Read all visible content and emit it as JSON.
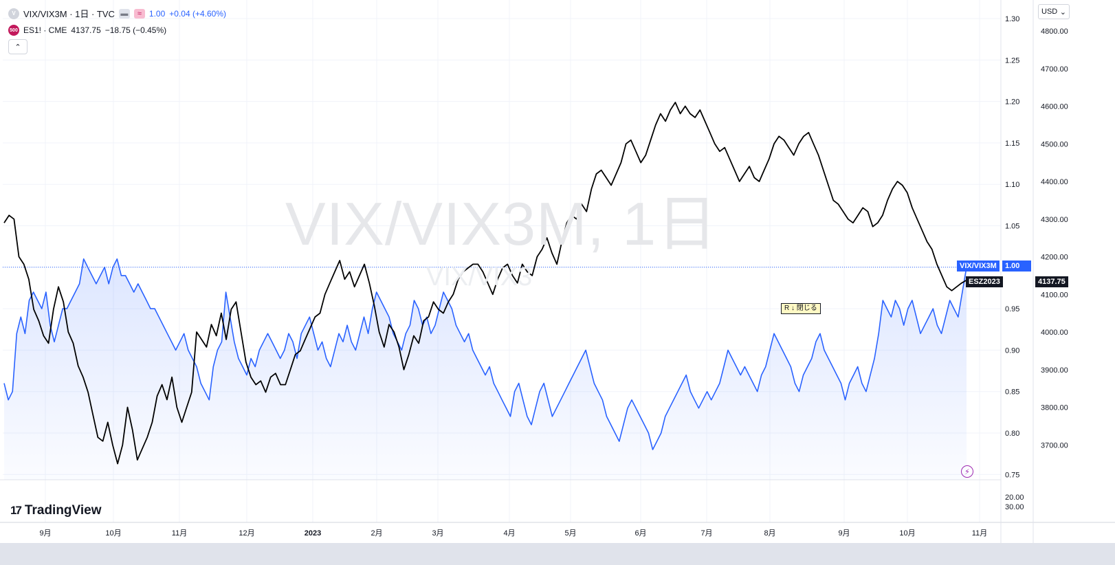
{
  "legend": {
    "main": {
      "badge": "V",
      "title": "VIX/VIX3M · 1日 · TVC",
      "value": "1.00",
      "change": "+0.04 (+4.60%)"
    },
    "compare": {
      "badge": "500",
      "title": "ES1! · CME",
      "value": "4137.75",
      "change": "−18.75 (−0.45%)"
    }
  },
  "watermark": {
    "large": "VIX/VIX3M, 1日",
    "small": "VIX/VIX3"
  },
  "currency": "USD",
  "brand": "TradingView",
  "close_tag": "R ↓ 閉じる",
  "labels": {
    "vix_name": "VIX/VIX3M",
    "vix_value": "1.00",
    "es_name": "ESZ2023",
    "es_value": "4137.75"
  },
  "colors": {
    "vix": "#2962ff",
    "es": "#000000",
    "label_blue": "#2962ff",
    "label_dark": "#131722"
  },
  "chart_data": {
    "type": "line",
    "x_ticks": [
      "9月",
      "10月",
      "11月",
      "12月",
      "2023",
      "2月",
      "3月",
      "4月",
      "5月",
      "6月",
      "7月",
      "8月",
      "9月",
      "10月",
      "11月"
    ],
    "y_left_ticks": [
      "1.30",
      "1.25",
      "1.20",
      "1.15",
      "1.10",
      "1.05",
      "1.00",
      "0.95",
      "0.90",
      "0.85",
      "0.80",
      "0.75"
    ],
    "y_right_ticks": [
      "4800.00",
      "4700.00",
      "4600.00",
      "4500.00",
      "4400.00",
      "4300.00",
      "4200.00",
      "4100.00",
      "4000.00",
      "3900.00",
      "3800.00",
      "3700.00"
    ],
    "lower_pane_ticks": [
      "20.00",
      "30.00"
    ],
    "series": [
      {
        "name": "VIX/VIX3M",
        "axis": "left",
        "area": true,
        "values": [
          0.86,
          0.84,
          0.85,
          0.92,
          0.94,
          0.92,
          0.96,
          0.97,
          0.96,
          0.95,
          0.97,
          0.93,
          0.91,
          0.93,
          0.95,
          0.95,
          0.96,
          0.97,
          0.98,
          1.01,
          1.0,
          0.99,
          0.98,
          0.99,
          1.0,
          0.98,
          1.0,
          1.01,
          0.99,
          0.99,
          0.98,
          0.97,
          0.98,
          0.97,
          0.96,
          0.95,
          0.95,
          0.94,
          0.93,
          0.92,
          0.91,
          0.9,
          0.91,
          0.92,
          0.9,
          0.89,
          0.88,
          0.86,
          0.85,
          0.84,
          0.88,
          0.9,
          0.91,
          0.97,
          0.94,
          0.91,
          0.89,
          0.88,
          0.87,
          0.89,
          0.88,
          0.9,
          0.91,
          0.92,
          0.91,
          0.9,
          0.89,
          0.9,
          0.92,
          0.91,
          0.89,
          0.92,
          0.93,
          0.94,
          0.92,
          0.9,
          0.91,
          0.89,
          0.88,
          0.9,
          0.92,
          0.91,
          0.93,
          0.91,
          0.9,
          0.92,
          0.94,
          0.92,
          0.95,
          0.97,
          0.96,
          0.95,
          0.94,
          0.92,
          0.91,
          0.9,
          0.92,
          0.93,
          0.96,
          0.95,
          0.93,
          0.94,
          0.92,
          0.93,
          0.95,
          0.97,
          0.96,
          0.95,
          0.93,
          0.92,
          0.91,
          0.92,
          0.9,
          0.89,
          0.88,
          0.87,
          0.88,
          0.86,
          0.85,
          0.84,
          0.83,
          0.82,
          0.85,
          0.86,
          0.84,
          0.82,
          0.81,
          0.83,
          0.85,
          0.86,
          0.84,
          0.82,
          0.83,
          0.84,
          0.85,
          0.86,
          0.87,
          0.88,
          0.89,
          0.9,
          0.88,
          0.86,
          0.85,
          0.84,
          0.82,
          0.81,
          0.8,
          0.79,
          0.81,
          0.83,
          0.84,
          0.83,
          0.82,
          0.81,
          0.8,
          0.78,
          0.79,
          0.8,
          0.82,
          0.83,
          0.84,
          0.85,
          0.86,
          0.87,
          0.85,
          0.84,
          0.83,
          0.84,
          0.85,
          0.84,
          0.85,
          0.86,
          0.88,
          0.9,
          0.89,
          0.88,
          0.87,
          0.88,
          0.87,
          0.86,
          0.85,
          0.87,
          0.88,
          0.9,
          0.92,
          0.91,
          0.9,
          0.89,
          0.88,
          0.86,
          0.85,
          0.87,
          0.88,
          0.89,
          0.91,
          0.92,
          0.9,
          0.89,
          0.88,
          0.87,
          0.86,
          0.84,
          0.86,
          0.87,
          0.88,
          0.86,
          0.85,
          0.87,
          0.89,
          0.92,
          0.96,
          0.95,
          0.94,
          0.96,
          0.95,
          0.93,
          0.95,
          0.96,
          0.94,
          0.92,
          0.93,
          0.94,
          0.95,
          0.93,
          0.92,
          0.94,
          0.96,
          0.95,
          0.94,
          0.97,
          1.0
        ]
      },
      {
        "name": "ESZ2023",
        "axis": "right",
        "area": false,
        "values": [
          4290,
          4310,
          4300,
          4200,
          4180,
          4140,
          4060,
          4030,
          3990,
          3970,
          4060,
          4120,
          4080,
          4000,
          3970,
          3910,
          3880,
          3840,
          3780,
          3720,
          3710,
          3760,
          3700,
          3650,
          3700,
          3800,
          3740,
          3660,
          3690,
          3720,
          3760,
          3830,
          3860,
          3820,
          3880,
          3800,
          3760,
          3800,
          3840,
          4000,
          3980,
          3960,
          4020,
          3990,
          4050,
          3980,
          4060,
          4080,
          4000,
          3920,
          3880,
          3860,
          3870,
          3840,
          3880,
          3890,
          3860,
          3860,
          3900,
          3940,
          3950,
          3980,
          4010,
          4040,
          4050,
          4100,
          4130,
          4160,
          4190,
          4140,
          4160,
          4120,
          4150,
          4180,
          4130,
          4070,
          4000,
          3960,
          4020,
          4000,
          3960,
          3900,
          3940,
          3990,
          3970,
          4030,
          4040,
          4080,
          4060,
          4050,
          4080,
          4100,
          4140,
          4160,
          4170,
          4180,
          4180,
          4160,
          4130,
          4100,
          4140,
          4170,
          4180,
          4150,
          4130,
          4180,
          4160,
          4150,
          4200,
          4220,
          4250,
          4210,
          4180,
          4240,
          4290,
          4310,
          4300,
          4340,
          4320,
          4380,
          4420,
          4430,
          4410,
          4390,
          4420,
          4450,
          4500,
          4510,
          4480,
          4450,
          4470,
          4510,
          4550,
          4580,
          4560,
          4590,
          4610,
          4580,
          4600,
          4580,
          4570,
          4590,
          4560,
          4530,
          4500,
          4480,
          4490,
          4460,
          4430,
          4400,
          4420,
          4440,
          4410,
          4400,
          4430,
          4460,
          4500,
          4520,
          4510,
          4490,
          4470,
          4500,
          4520,
          4530,
          4500,
          4470,
          4430,
          4390,
          4350,
          4340,
          4320,
          4300,
          4290,
          4310,
          4330,
          4320,
          4280,
          4290,
          4310,
          4350,
          4380,
          4400,
          4390,
          4370,
          4330,
          4300,
          4270,
          4240,
          4220,
          4180,
          4150,
          4120,
          4110,
          4120,
          4130,
          4137.75
        ]
      }
    ]
  }
}
